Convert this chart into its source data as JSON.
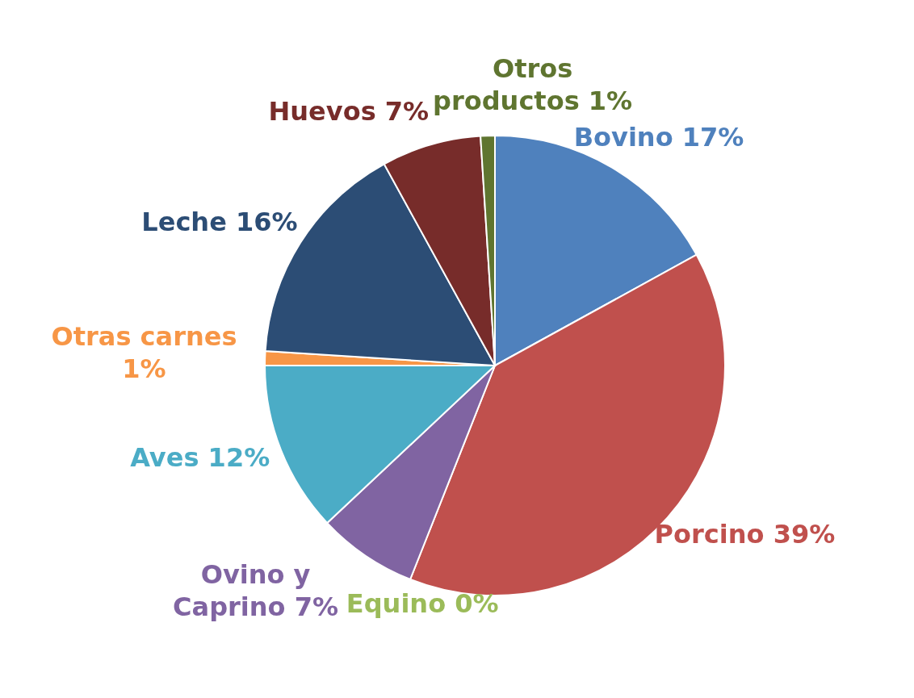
{
  "chart_data": {
    "type": "pie",
    "categories": [
      "Bovino",
      "Porcino",
      "Equino",
      "Ovino y Caprino",
      "Aves",
      "Otras carnes",
      "Leche",
      "Huevos",
      "Otros productos"
    ],
    "values": [
      17,
      39,
      0,
      7,
      12,
      1,
      16,
      7,
      1
    ],
    "value_labels": [
      "17%",
      "39%",
      "0%",
      "7%",
      "12%",
      "1%",
      "16%",
      "7%",
      "1%"
    ],
    "colors": [
      "#4f81bd",
      "#c0504d",
      "#9bbb59",
      "#8064a2",
      "#4bacc6",
      "#f79646",
      "#2c4d75",
      "#772c2a",
      "#5f7530"
    ],
    "legend": false
  }
}
